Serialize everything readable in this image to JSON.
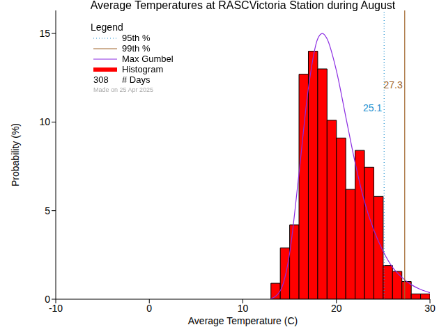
{
  "chart_data": {
    "type": "histogram",
    "title": "Average Temperatures at RASCVictoria Station during August",
    "x_label": "Average Temperature (C)",
    "y_label": "Probability (%)",
    "bins": [
      13,
      14,
      15,
      16,
      17,
      18,
      19,
      20,
      21,
      22,
      23,
      24,
      25,
      26,
      27,
      28,
      29,
      30
    ],
    "counts": [
      0.9,
      2.9,
      4.2,
      12.7,
      14.0,
      13.0,
      10.1,
      9.1,
      6.2,
      8.4,
      7.45,
      5.8,
      1.9,
      1.57,
      1.0,
      0.3,
      0.3
    ],
    "color": "#ff0000",
    "histogram_name": "Histogram",
    "xlim": [
      -10,
      30
    ],
    "xticks": [
      -10,
      0,
      10,
      20,
      30
    ],
    "ylim": [
      0,
      16.3
    ],
    "yticks": [
      0,
      5,
      10,
      15
    ],
    "legend": "upper left",
    "legend_title": "Legend",
    "series": [
      {
        "name": "Max Gumbel",
        "type": "line",
        "color": "#8a2be2",
        "x": [
          13,
          14,
          15,
          16,
          17,
          18,
          18.5,
          19,
          20,
          21,
          22,
          23,
          24,
          25,
          26,
          27,
          28,
          29,
          30
        ],
        "values": [
          0.03,
          0.48,
          2.6,
          7.1,
          11.9,
          14.7,
          15.0,
          14.7,
          12.9,
          10.3,
          7.7,
          5.5,
          3.9,
          2.7,
          1.8,
          1.23,
          0.82,
          0.55,
          0.37
        ]
      }
    ],
    "reference_lines": [
      {
        "name": "95th %",
        "x": 25.1,
        "color": "#1e90d0",
        "line_style": "dotted"
      },
      {
        "name": "99th %",
        "x": 27.3,
        "color": "#a0642a",
        "line_style": "solid"
      }
    ],
    "days": {
      "value": 308,
      "label": "# Days"
    },
    "annotations": [
      "Made on 25 Apr 2025"
    ]
  }
}
